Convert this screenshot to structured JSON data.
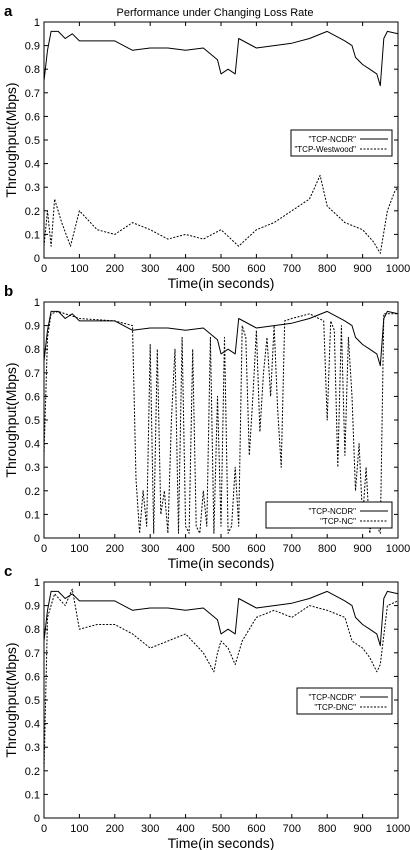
{
  "figure_title": "Performance under Changing Loss Rate",
  "chart_data": [
    {
      "panel_letter": "a",
      "type": "line",
      "xlabel": "Time(in seconds)",
      "ylabel": "Throughput(Mbps)",
      "xlim": [
        0,
        1000
      ],
      "ylim": [
        0,
        1
      ],
      "xticks": [
        "0",
        "100",
        "200",
        "300",
        "400",
        "500",
        "600",
        "700",
        "800",
        "900",
        "1000"
      ],
      "yticks": [
        "0",
        "0.1",
        "0.2",
        "0.3",
        "0.4",
        "0.5",
        "0.6",
        "0.7",
        "0.8",
        "0.9",
        "1"
      ],
      "legend_position": "middle-right",
      "series": [
        {
          "name": "\"TCP-NCDR\"",
          "dash": "solid",
          "x": [
            0,
            10,
            20,
            40,
            60,
            80,
            100,
            150,
            200,
            250,
            300,
            350,
            400,
            450,
            490,
            500,
            520,
            540,
            550,
            600,
            650,
            700,
            750,
            800,
            850,
            870,
            880,
            900,
            920,
            940,
            950,
            960,
            970,
            1000
          ],
          "y": [
            0.75,
            0.88,
            0.96,
            0.96,
            0.93,
            0.95,
            0.92,
            0.92,
            0.92,
            0.88,
            0.89,
            0.89,
            0.88,
            0.89,
            0.84,
            0.78,
            0.8,
            0.78,
            0.93,
            0.89,
            0.9,
            0.91,
            0.93,
            0.96,
            0.92,
            0.9,
            0.85,
            0.82,
            0.8,
            0.78,
            0.73,
            0.93,
            0.96,
            0.95
          ]
        },
        {
          "name": "\"TCP-Westwood\"",
          "dash": "dashed",
          "x": [
            0,
            10,
            20,
            30,
            50,
            75,
            100,
            150,
            200,
            250,
            300,
            350,
            400,
            450,
            500,
            550,
            600,
            650,
            700,
            750,
            780,
            800,
            850,
            900,
            930,
            950,
            970,
            990,
            1000
          ],
          "y": [
            0.05,
            0.2,
            0.05,
            0.25,
            0.15,
            0.05,
            0.2,
            0.12,
            0.1,
            0.15,
            0.12,
            0.08,
            0.1,
            0.08,
            0.12,
            0.05,
            0.12,
            0.15,
            0.2,
            0.25,
            0.35,
            0.22,
            0.15,
            0.12,
            0.07,
            0.02,
            0.2,
            0.28,
            0.3
          ]
        }
      ]
    },
    {
      "panel_letter": "b",
      "type": "line",
      "xlabel": "Time(in seconds)",
      "ylabel": "Throughput(Mbps)",
      "xlim": [
        0,
        1000
      ],
      "ylim": [
        0,
        1
      ],
      "xticks": [
        "0",
        "100",
        "200",
        "300",
        "400",
        "500",
        "600",
        "700",
        "800",
        "900",
        "1000"
      ],
      "yticks": [
        "0",
        "0.1",
        "0.2",
        "0.3",
        "0.4",
        "0.5",
        "0.6",
        "0.7",
        "0.8",
        "0.9",
        "1"
      ],
      "legend_position": "bottom-right",
      "series": [
        {
          "name": "\"TCP-NCDR\"",
          "dash": "solid",
          "x": [
            0,
            10,
            20,
            40,
            60,
            80,
            100,
            150,
            200,
            250,
            300,
            350,
            400,
            450,
            490,
            500,
            520,
            540,
            550,
            600,
            650,
            700,
            750,
            800,
            850,
            870,
            880,
            900,
            920,
            940,
            950,
            960,
            970,
            1000
          ],
          "y": [
            0.75,
            0.88,
            0.96,
            0.96,
            0.93,
            0.95,
            0.92,
            0.92,
            0.92,
            0.88,
            0.89,
            0.89,
            0.88,
            0.89,
            0.84,
            0.78,
            0.8,
            0.78,
            0.93,
            0.89,
            0.9,
            0.91,
            0.93,
            0.96,
            0.92,
            0.9,
            0.85,
            0.82,
            0.8,
            0.78,
            0.73,
            0.93,
            0.96,
            0.95
          ]
        },
        {
          "name": "\"TCP-NC\"",
          "dash": "dashed",
          "x": [
            0,
            10,
            20,
            40,
            100,
            200,
            250,
            260,
            270,
            280,
            290,
            300,
            310,
            320,
            330,
            340,
            350,
            360,
            370,
            380,
            390,
            400,
            410,
            420,
            430,
            440,
            450,
            460,
            470,
            480,
            490,
            500,
            510,
            520,
            530,
            540,
            550,
            560,
            570,
            580,
            590,
            600,
            610,
            620,
            630,
            640,
            650,
            660,
            670,
            680,
            700,
            750,
            790,
            800,
            810,
            820,
            830,
            840,
            850,
            860,
            870,
            880,
            890,
            900,
            910,
            920,
            930,
            940,
            950,
            960,
            970,
            1000
          ],
          "y": [
            0.35,
            0.85,
            0.95,
            0.96,
            0.93,
            0.92,
            0.9,
            0.25,
            0.02,
            0.2,
            0.05,
            0.82,
            0.02,
            0.8,
            0.1,
            0.2,
            0.02,
            0.5,
            0.8,
            0.02,
            0.85,
            0.05,
            0.02,
            0.8,
            0.05,
            0.02,
            0.2,
            0.05,
            0.85,
            0.02,
            0.6,
            0.05,
            0.85,
            0.02,
            0.05,
            0.3,
            0.05,
            0.9,
            0.85,
            0.35,
            0.6,
            0.88,
            0.45,
            0.7,
            0.85,
            0.6,
            0.9,
            0.55,
            0.3,
            0.92,
            0.93,
            0.95,
            0.92,
            0.5,
            0.92,
            0.88,
            0.3,
            0.9,
            0.35,
            0.85,
            0.6,
            0.2,
            0.4,
            0.08,
            0.3,
            0.02,
            0.1,
            0.05,
            0.02,
            0.95,
            0.95,
            0.95
          ]
        }
      ]
    },
    {
      "panel_letter": "c",
      "type": "line",
      "xlabel": "Time(in seconds)",
      "ylabel": "Throughput(Mbps)",
      "xlim": [
        0,
        1000
      ],
      "ylim": [
        0,
        1
      ],
      "xticks": [
        "0",
        "100",
        "200",
        "300",
        "400",
        "500",
        "600",
        "700",
        "800",
        "900",
        "1000"
      ],
      "yticks": [
        "0",
        "0.1",
        "0.2",
        "0.3",
        "0.4",
        "0.5",
        "0.6",
        "0.7",
        "0.8",
        "0.9",
        "1"
      ],
      "legend_position": "middle-right",
      "series": [
        {
          "name": "\"TCP-NCDR\"",
          "dash": "solid",
          "x": [
            0,
            10,
            20,
            40,
            60,
            80,
            100,
            150,
            200,
            250,
            300,
            350,
            400,
            450,
            490,
            500,
            520,
            540,
            550,
            600,
            650,
            700,
            750,
            800,
            850,
            870,
            880,
            900,
            920,
            940,
            950,
            960,
            970,
            1000
          ],
          "y": [
            0.75,
            0.88,
            0.96,
            0.96,
            0.93,
            0.95,
            0.92,
            0.92,
            0.92,
            0.88,
            0.89,
            0.89,
            0.88,
            0.89,
            0.84,
            0.78,
            0.8,
            0.78,
            0.93,
            0.89,
            0.9,
            0.91,
            0.93,
            0.96,
            0.92,
            0.9,
            0.85,
            0.82,
            0.8,
            0.78,
            0.73,
            0.93,
            0.96,
            0.95
          ]
        },
        {
          "name": "\"TCP-DNC\"",
          "dash": "dashed",
          "x": [
            0,
            10,
            30,
            60,
            80,
            100,
            150,
            200,
            250,
            300,
            350,
            400,
            450,
            480,
            490,
            500,
            520,
            540,
            560,
            600,
            650,
            700,
            750,
            800,
            850,
            870,
            900,
            920,
            940,
            950,
            970,
            1000
          ],
          "y": [
            0.2,
            0.85,
            0.95,
            0.9,
            0.97,
            0.8,
            0.82,
            0.82,
            0.78,
            0.72,
            0.75,
            0.78,
            0.7,
            0.62,
            0.7,
            0.75,
            0.72,
            0.65,
            0.75,
            0.85,
            0.88,
            0.85,
            0.9,
            0.88,
            0.85,
            0.75,
            0.72,
            0.68,
            0.62,
            0.65,
            0.9,
            0.92
          ]
        }
      ]
    }
  ]
}
